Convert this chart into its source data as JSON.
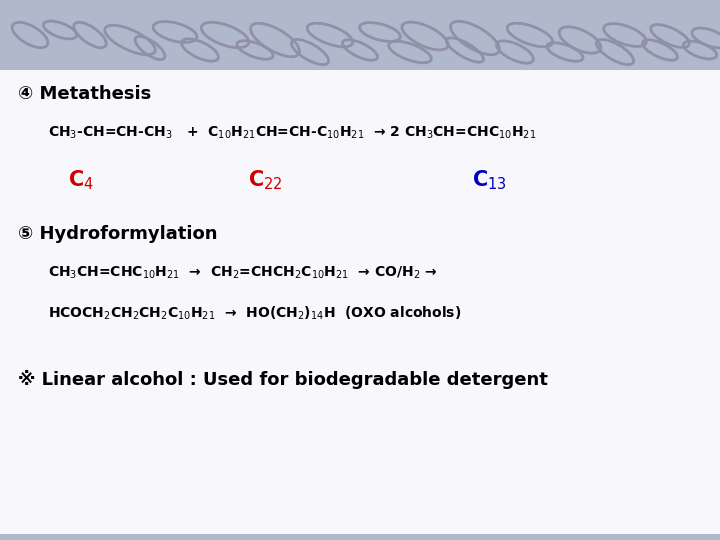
{
  "bg_color": "#f0f0f5",
  "text_color": "#000000",
  "title1": "④ Metathesis",
  "title2": "⑤ Hydroformylation",
  "note": "※ Linear alcohol : Used for biodegradable detergent",
  "eq1_main": "CH$_3$-CH=CH-CH$_3$   +  C$_{10}$H$_{21}$CH=CH-C$_{10}$H$_{21}$  → 2 CH$_3$CH=CHC$_{10}$H$_{21}$",
  "eq1_c4": "C$_4$",
  "eq1_c22": "C$_{22}$",
  "eq1_c13": "C$_{13}$",
  "eq2_line1": "CH$_3$CH=CHC$_{10}$H$_{21}$  →  CH$_2$=CHCH$_2$C$_{10}$H$_{21}$  → CO/H$_2$ →",
  "eq2_line2": "HCOCH$_2$CH$_2$CH$_2$C$_{10}$H$_{21}$  →  HO(CH$_2$)$_{14}$H  (OXO alcohols)",
  "c4_color": "#cc0000",
  "c22_color": "#cc0000",
  "c13_color": "#0000bb",
  "header_bg": "#b0b8cc",
  "slide_bg": "#f2f2f8",
  "chain_color": "#9090aa"
}
